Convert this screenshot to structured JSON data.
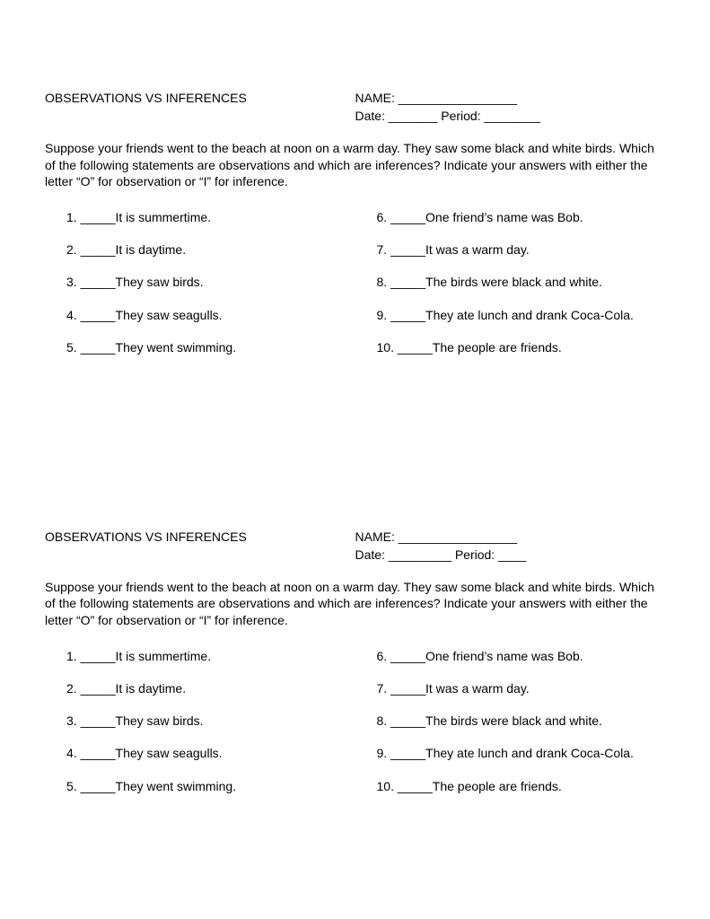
{
  "text_color": "#000000",
  "background_color": "#ffffff",
  "font_family": "Arial",
  "font_size_pt": 11,
  "worksheets": [
    {
      "title": "OBSERVATIONS VS INFERENCES",
      "name_line": "NAME: _________________",
      "date_line": "Date: _______ Period: ________",
      "instructions": "Suppose your friends went to the beach at noon on a warm day.  They saw some black and white birds.  Which of the following statements are observations and which are inferences?  Indicate your answers with either the letter “O” for observation or “I” for inference.",
      "left_questions": [
        {
          "num": "1.",
          "blank": "_____",
          "text": "It is summertime."
        },
        {
          "num": "2.",
          "blank": "_____",
          "text": "It is daytime."
        },
        {
          "num": "3.",
          "blank": "_____",
          "text": "They saw birds."
        },
        {
          "num": "4.",
          "blank": "_____",
          "text": "They saw seagulls."
        },
        {
          "num": "5.",
          "blank": "_____",
          "text": "They went swimming."
        }
      ],
      "right_questions": [
        {
          "num": "6.",
          "blank": "_____",
          "text": "One friend’s name was Bob."
        },
        {
          "num": "7.",
          "blank": "_____",
          "text": "It was a warm day."
        },
        {
          "num": "8.",
          "blank": "_____",
          "text": "The birds were black and white."
        },
        {
          "num": "9.",
          "blank": "_____",
          "text": "They ate lunch and drank Coca-Cola."
        },
        {
          "num": "10.",
          "blank": "_____",
          "text": "The people are friends."
        }
      ]
    },
    {
      "title": "OBSERVATIONS VS INFERENCES",
      "name_line": "NAME: _________________",
      "date_line": "Date: _________ Period: ____",
      "instructions": "Suppose your friends went to the beach at noon on a warm day.  They saw some black and white birds.  Which of the following statements are observations and which are inferences?  Indicate your answers with either the letter “O” for observation or “I” for inference.",
      "left_questions": [
        {
          "num": "1.",
          "blank": "_____",
          "text": "It is summertime."
        },
        {
          "num": "2.",
          "blank": "_____",
          "text": "It is daytime."
        },
        {
          "num": "3.",
          "blank": "_____",
          "text": "They saw birds."
        },
        {
          "num": "4.",
          "blank": "_____",
          "text": "They saw seagulls."
        },
        {
          "num": "5.",
          "blank": "_____",
          "text": "They went swimming."
        }
      ],
      "right_questions": [
        {
          "num": "6.",
          "blank": "_____",
          "text": "One friend’s name was Bob."
        },
        {
          "num": "7.",
          "blank": "_____",
          "text": "It was a warm day."
        },
        {
          "num": "8.",
          "blank": "_____",
          "text": "The birds were black and white."
        },
        {
          "num": "9.",
          "blank": "_____",
          "text": "They ate lunch and drank Coca-Cola."
        },
        {
          "num": "10.",
          "blank": "_____",
          "text": "The people are friends."
        }
      ]
    }
  ]
}
